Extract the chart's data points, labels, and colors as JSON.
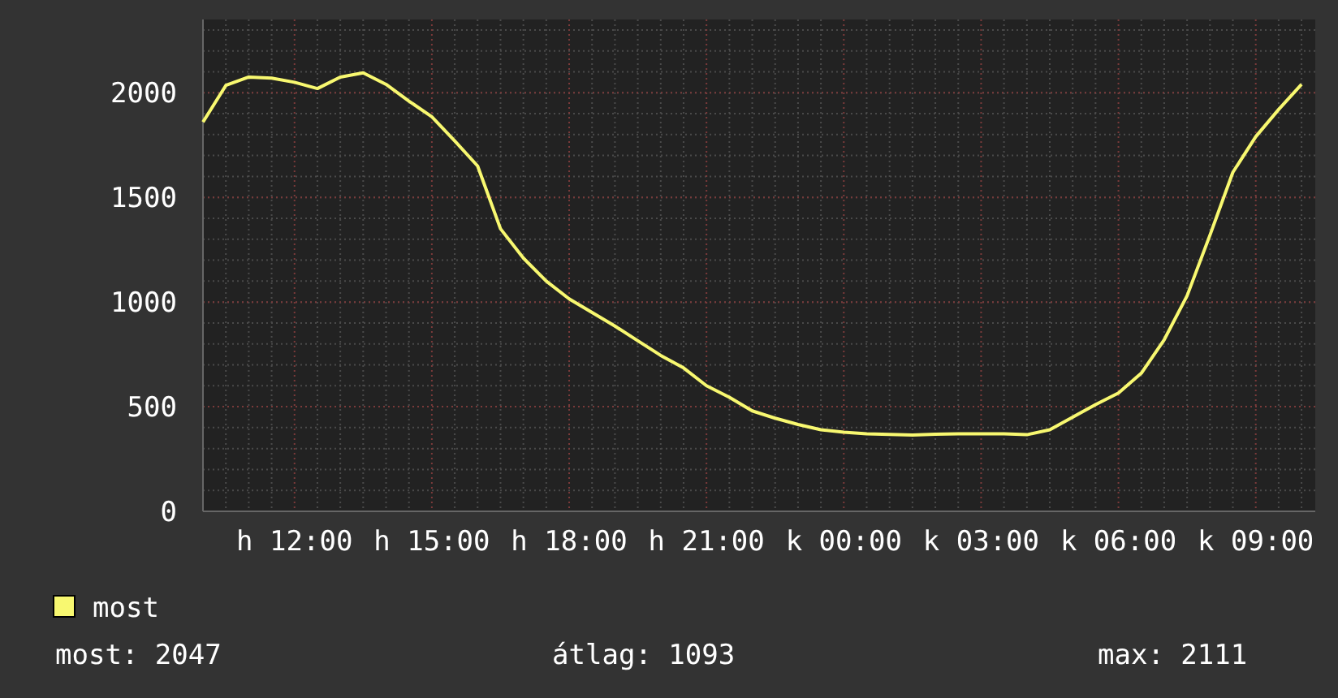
{
  "chart_data": {
    "type": "line",
    "ylim": [
      0,
      2350
    ],
    "categories": [
      null,
      null,
      null,
      null,
      "h 12:00",
      null,
      null,
      null,
      null,
      null,
      "h 15:00",
      null,
      null,
      null,
      null,
      null,
      "h 18:00",
      null,
      null,
      null,
      null,
      null,
      "h 21:00",
      null,
      null,
      null,
      null,
      null,
      "k 00:00",
      null,
      null,
      null,
      null,
      null,
      "k 03:00",
      null,
      null,
      null,
      null,
      null,
      "k 06:00",
      null,
      null,
      null,
      null,
      null,
      "k 09:00",
      null,
      null
    ],
    "yticks": [
      0,
      500,
      1000,
      1500,
      2000
    ],
    "grid": true,
    "legend": "bottom left",
    "marker": "none",
    "line_style": "solid",
    "series": [
      {
        "name": "most",
        "color": "#f8f870",
        "values": [
          1860,
          2035,
          2075,
          2070,
          2050,
          2020,
          2075,
          2095,
          2040,
          1960,
          1885,
          1770,
          1650,
          1350,
          1210,
          1100,
          1015,
          950,
          885,
          815,
          745,
          685,
          600,
          545,
          480,
          445,
          415,
          390,
          378,
          370,
          367,
          365,
          368,
          370,
          370,
          370,
          366,
          390,
          450,
          510,
          565,
          660,
          820,
          1030,
          1320,
          1620,
          1790,
          1920,
          2040
        ]
      }
    ],
    "annotations": [
      "most: 2047",
      "átlag: 1093",
      "max: 2111"
    ]
  }
}
